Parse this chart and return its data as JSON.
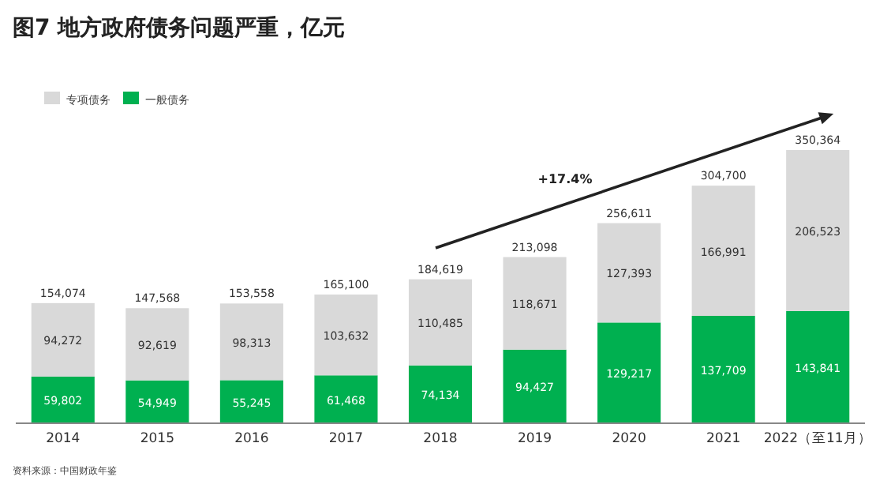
{
  "chart_data": {
    "type": "bar",
    "title": "图7 地方政府债务问题严重，亿元",
    "stacked": true,
    "legend": "top left",
    "categories": [
      "2014",
      "2015",
      "2016",
      "2017",
      "2018",
      "2019",
      "2020",
      "2021",
      "2022（至11月）"
    ],
    "series": [
      {
        "name": "一般债务",
        "color": "#00b050",
        "values": [
          59802,
          54949,
          55245,
          61468,
          74134,
          94427,
          129217,
          137709,
          143841
        ],
        "value_labels": [
          "59,802",
          "54,949",
          "55,245",
          "61,468",
          "74,134",
          "94,427",
          "129,217",
          "137,709",
          "143,841"
        ]
      },
      {
        "name": "专项债务",
        "color": "#d9d9d9",
        "values": [
          94272,
          92619,
          98313,
          103632,
          110485,
          118671,
          127393,
          166991,
          206523
        ],
        "value_labels": [
          "94,272",
          "92,619",
          "98,313",
          "103,632",
          "110,485",
          "118,671",
          "127,393",
          "166,991",
          "206,523"
        ]
      }
    ],
    "totals": [
      "154,074",
      "147,568",
      "153,558",
      "165,100",
      "184,619",
      "213,098",
      "256,611",
      "304,700",
      "350,364"
    ],
    "annotations": [
      "+17.4%",
      "资料来源：中国财政年鉴"
    ]
  }
}
